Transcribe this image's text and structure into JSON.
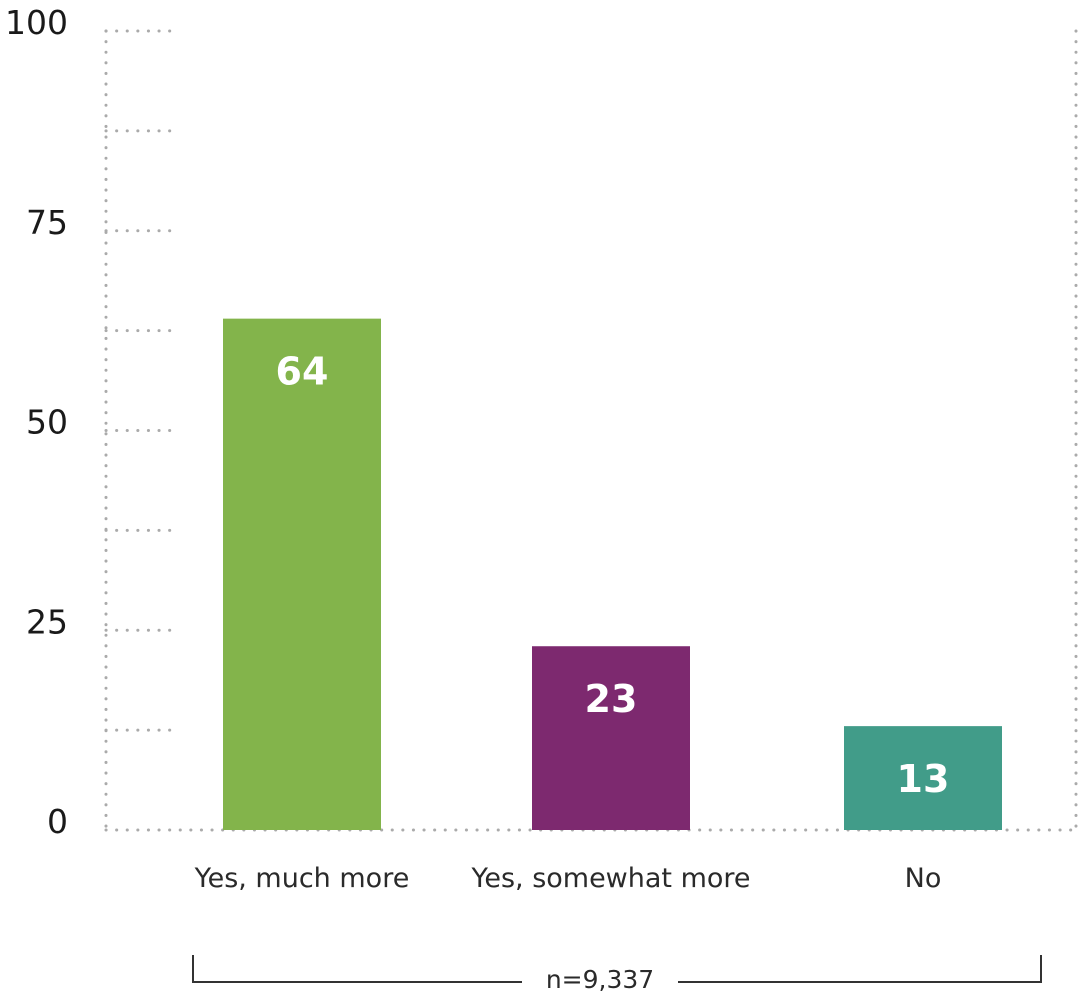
{
  "chart_data": {
    "type": "bar",
    "categories": [
      "Yes, much more",
      "Yes, somewhat more",
      "No"
    ],
    "values": [
      64,
      23,
      13
    ],
    "value_labels": [
      "64",
      "23",
      "13"
    ],
    "colors": [
      "#83b44b",
      "#7d296f",
      "#419c89"
    ],
    "ylim": [
      0,
      100
    ],
    "yticks": [
      0,
      25,
      50,
      75,
      100
    ],
    "ytick_labels": [
      "0",
      "25",
      "50",
      "75",
      "100"
    ],
    "minor_grid_step": 12.5,
    "grid": true,
    "grid_style": "dotted",
    "legend": "none",
    "title": "",
    "xlabel": "",
    "ylabel": "",
    "sample_note": "n=9,337"
  }
}
